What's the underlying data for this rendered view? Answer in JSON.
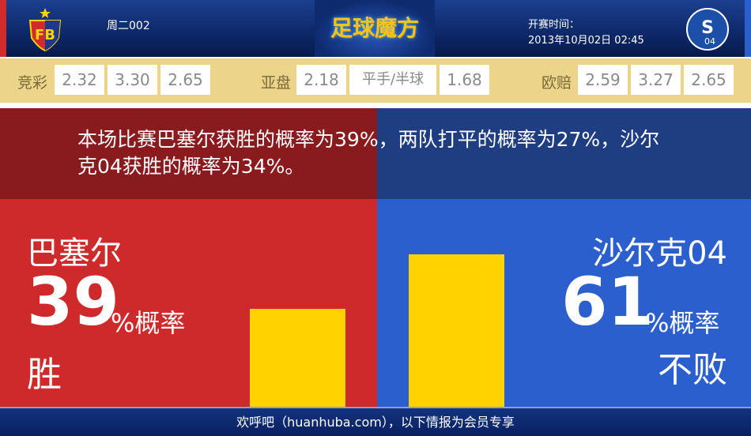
{
  "header": {
    "match_code": "周二002",
    "logo_text": "足球魔方",
    "time_label": "开赛时间：",
    "kickoff": "2013年10月02日 02:45",
    "home_crest": "FCB",
    "away_crest": "S04"
  },
  "odds": {
    "jingcai": {
      "label": "竞彩",
      "values": [
        "2.32",
        "3.30",
        "2.65"
      ]
    },
    "yapan": {
      "label": "亚盘",
      "values": [
        "2.18",
        "平手/半球",
        "1.68"
      ]
    },
    "oupei": {
      "label": "欧赔",
      "values": [
        "2.59",
        "3.27",
        "2.65"
      ]
    }
  },
  "summary": "本场比赛巴塞尔获胜的概率为39%，两队打平的概率为27%，沙尔克04获胜的概率为34%。",
  "home": {
    "name": "巴塞尔",
    "percent": "39",
    "unit": "%概率",
    "result": "胜",
    "value": 39
  },
  "away": {
    "name": "沙尔克04",
    "percent": "61",
    "unit": "%概率",
    "result": "不败",
    "value": 61
  },
  "colors": {
    "home": "#cf2a2b",
    "away": "#2b5fcd",
    "bar": "#ffd200",
    "odds_bg": "#ecd48a"
  },
  "footer": "欢呼吧（huanhuba.com），以下情报为会员专享"
}
